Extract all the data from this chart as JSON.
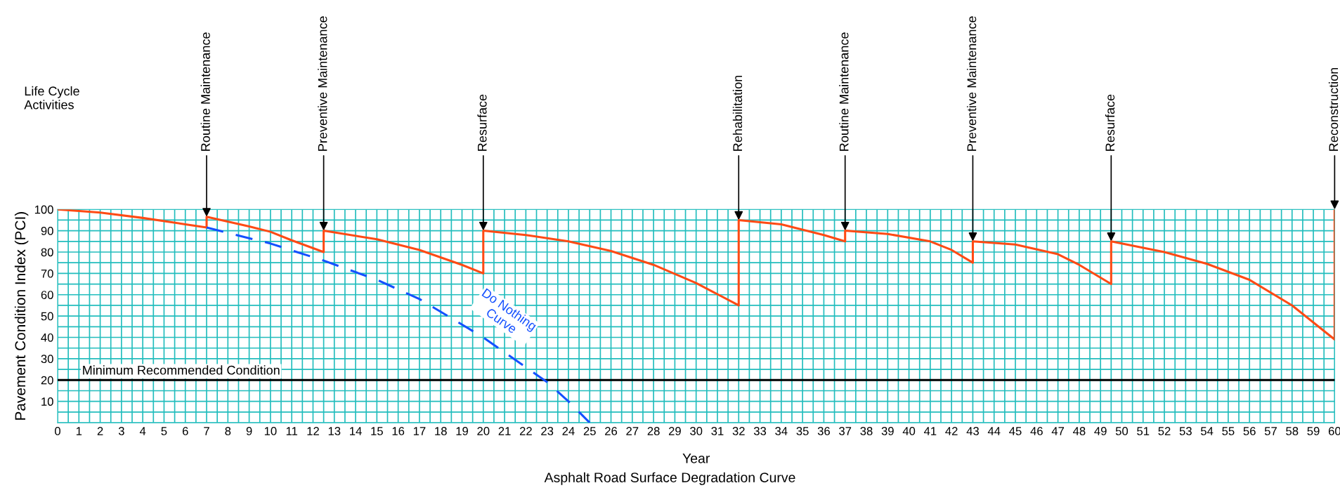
{
  "chart_data": {
    "type": "line",
    "title": "Asphalt Road Surface Degradation Curve",
    "xlabel": "Year",
    "ylabel": "Pavement Condition Index (PCI)",
    "xlim": [
      0,
      60
    ],
    "xticks": [
      0,
      1,
      2,
      3,
      4,
      5,
      6,
      7,
      8,
      9,
      10,
      11,
      12,
      13,
      14,
      15,
      16,
      17,
      18,
      19,
      20,
      21,
      22,
      23,
      24,
      25,
      26,
      27,
      28,
      29,
      30,
      31,
      32,
      33,
      34,
      35,
      36,
      37,
      38,
      39,
      40,
      41,
      42,
      43,
      44,
      45,
      46,
      47,
      48,
      49,
      50,
      51,
      52,
      53,
      54,
      55,
      56,
      57,
      58,
      59,
      60
    ],
    "ylim": [
      0,
      100
    ],
    "yticks": [
      10,
      20,
      30,
      40,
      50,
      60,
      70,
      80,
      90,
      100
    ],
    "grid": true,
    "marker": "none",
    "series": [
      {
        "color": "#ff4a14",
        "line_style": "solid",
        "x": [
          0,
          2,
          4,
          6,
          7,
          7,
          9,
          10,
          11,
          12.5,
          12.5,
          15,
          17,
          19,
          20,
          20,
          22,
          24,
          26,
          28,
          30,
          32,
          32,
          34,
          36,
          37,
          37,
          39,
          41,
          42,
          43,
          43,
          45,
          47,
          48,
          49.5,
          49.5,
          52,
          54,
          56,
          58,
          60,
          60
        ],
        "values": [
          100,
          98.5,
          96,
          93,
          91.5,
          96.5,
          92,
          89.5,
          85.5,
          80,
          90,
          86,
          81,
          74,
          70,
          90,
          88,
          85,
          80.5,
          74,
          65.5,
          55,
          95,
          93,
          88,
          85,
          90,
          88.5,
          85,
          81,
          75,
          85,
          83.5,
          79,
          74,
          65,
          85,
          80,
          74.5,
          67,
          55,
          39,
          100
        ]
      },
      {
        "name": "Do Nothing\nCurve",
        "color": "#1450ff",
        "line_style": "dashed",
        "x": [
          7,
          10,
          12.5,
          15,
          17,
          19,
          20,
          22,
          23,
          24,
          25
        ],
        "values": [
          91.5,
          84,
          76,
          67,
          58,
          46,
          40,
          26,
          19,
          10,
          0
        ]
      }
    ],
    "ref_lines": [
      {
        "axis": "y",
        "value": 20,
        "label": "Minimum Recommended Condition",
        "color": "#000000"
      }
    ],
    "annotations": [
      "Life Cycle\nActivities",
      {
        "text": "Routine Maintenance",
        "x": 7,
        "y": 96.5
      },
      {
        "text": "Preventive Maintenance",
        "x": 12.5,
        "y": 90
      },
      {
        "text": "Resurface",
        "x": 20,
        "y": 90
      },
      {
        "text": "Rehabilitation",
        "x": 32,
        "y": 95
      },
      {
        "text": "Routine Maintenance",
        "x": 37,
        "y": 90
      },
      {
        "text": "Preventive Maintenance",
        "x": 43,
        "y": 85
      },
      {
        "text": "Resurface",
        "x": 49.5,
        "y": 85
      },
      {
        "text": "Reconstruction",
        "x": 60,
        "y": 100
      }
    ]
  }
}
